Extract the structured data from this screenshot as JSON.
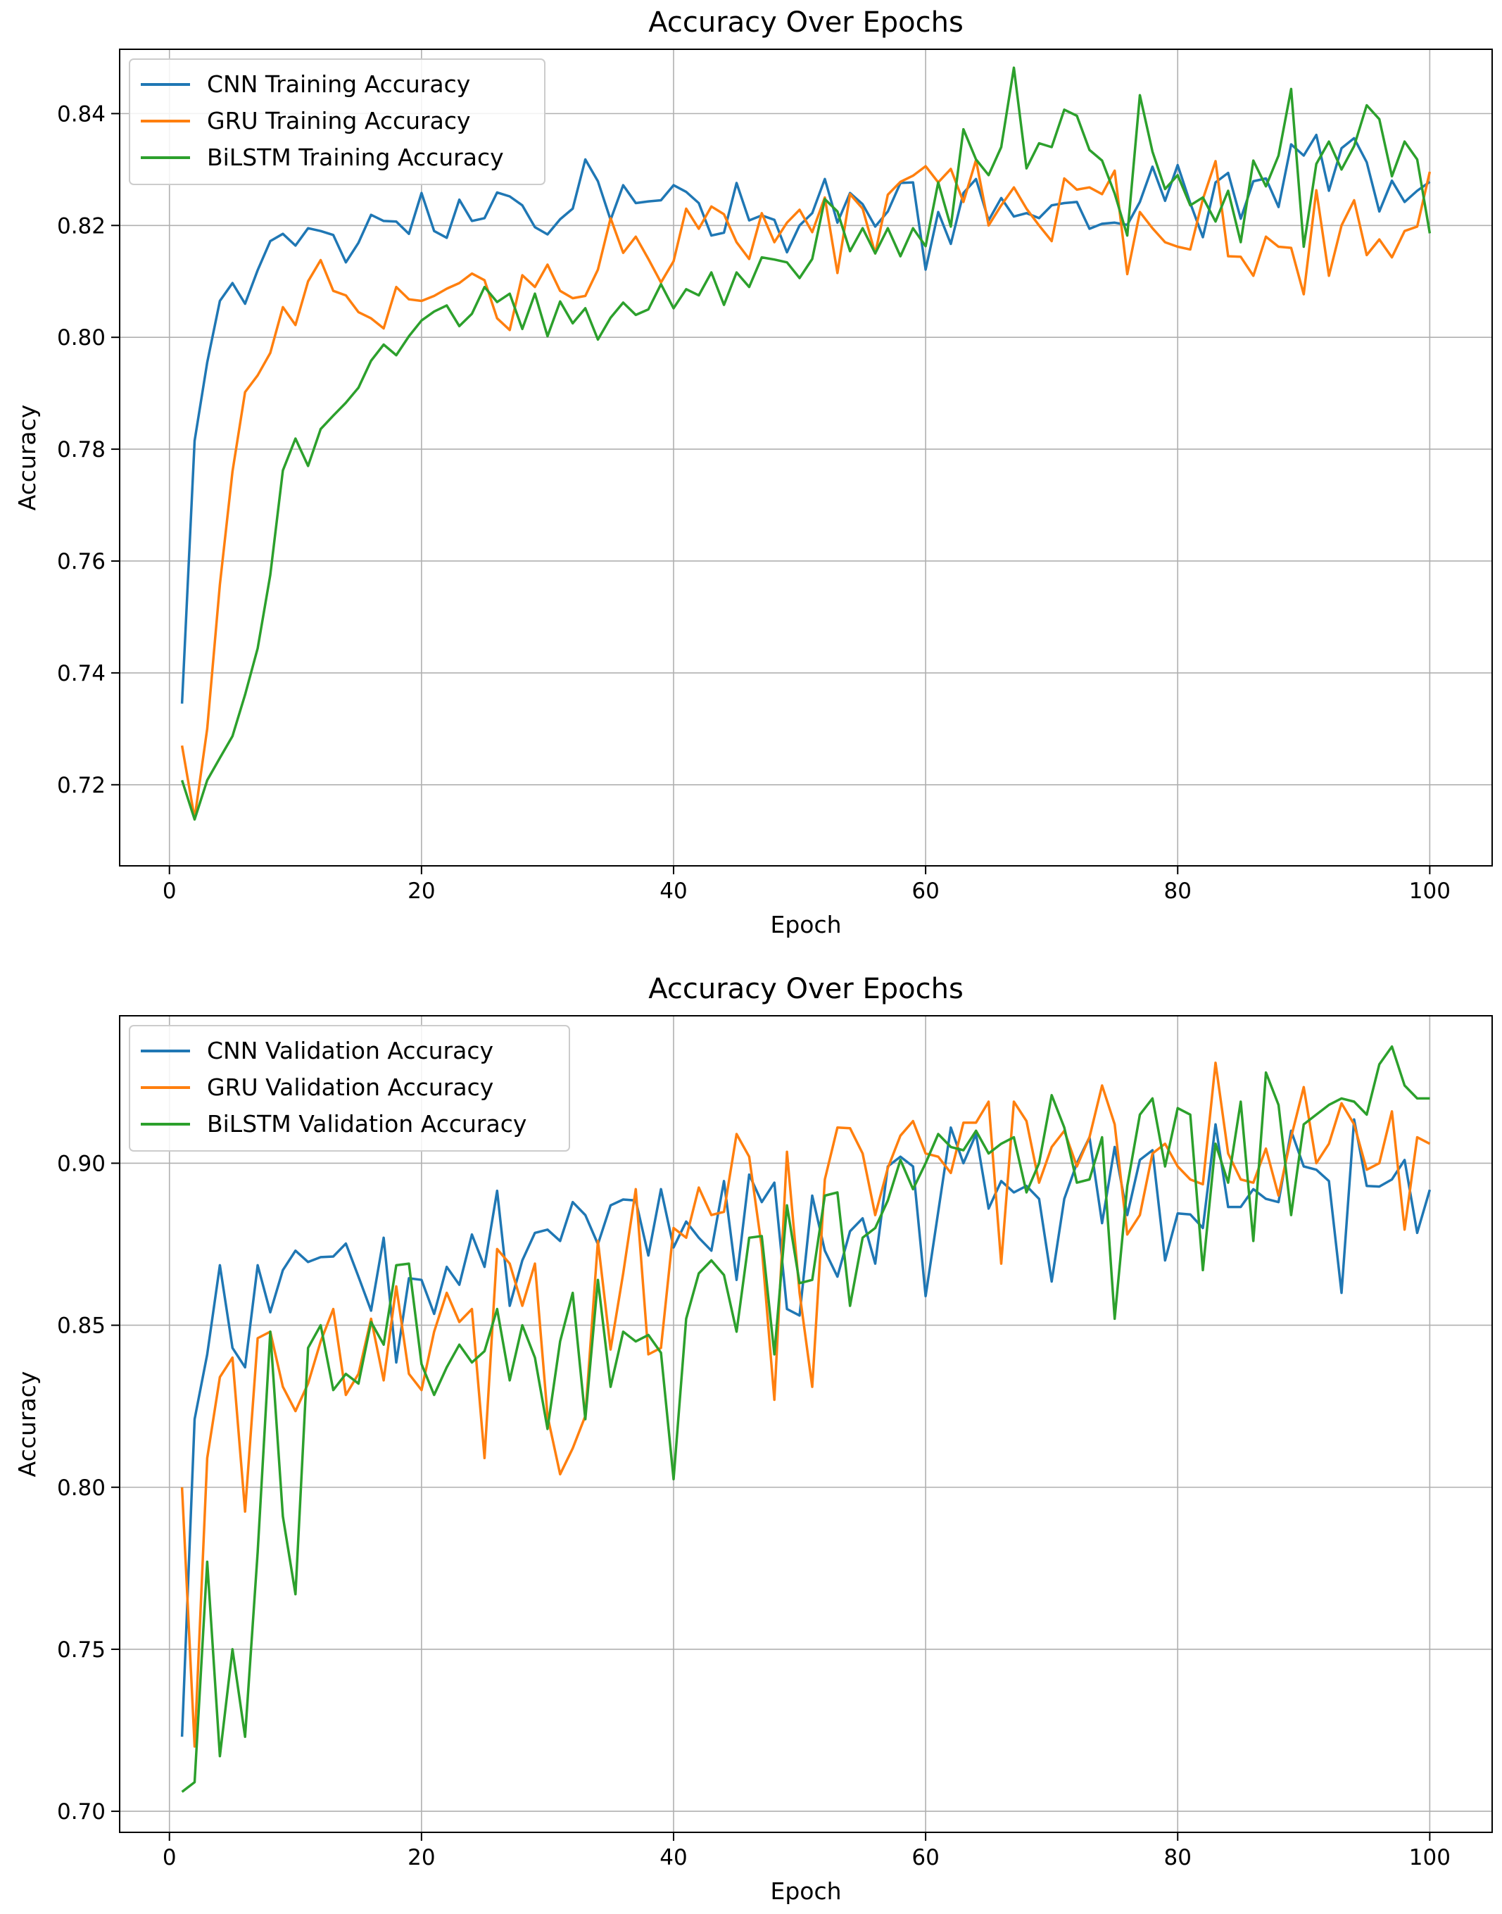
{
  "chart_data": [
    {
      "type": "line",
      "title": "Accuracy Over Epochs",
      "xlabel": "Epoch",
      "ylabel": "Accuracy",
      "xlim": [
        -3.95,
        104.95
      ],
      "ylim": [
        0.7055,
        0.8515
      ],
      "xticks": [
        0,
        20,
        40,
        60,
        80,
        100
      ],
      "xtick_labels": [
        "0",
        "20",
        "40",
        "60",
        "80",
        "100"
      ],
      "yticks": [
        0.72,
        0.74,
        0.76,
        0.78,
        0.8,
        0.82,
        0.84
      ],
      "ytick_labels": [
        "0.72",
        "0.74",
        "0.76",
        "0.78",
        "0.80",
        "0.82",
        "0.84"
      ],
      "grid": true,
      "legend_position": "top-left",
      "series": [
        {
          "name": "CNN Training Accuracy",
          "color": "#1f77b4",
          "values": [
            0.7345,
            0.7815,
            0.7955,
            0.8065,
            0.8097,
            0.806,
            0.812,
            0.8172,
            0.8185,
            0.8164,
            0.8195,
            0.819,
            0.8183,
            0.8134,
            0.8169,
            0.8219,
            0.8208,
            0.8207,
            0.8185,
            0.8258,
            0.819,
            0.8178,
            0.8246,
            0.8208,
            0.8213,
            0.8259,
            0.8252,
            0.8236,
            0.8197,
            0.8184,
            0.8211,
            0.823,
            0.8318,
            0.8279,
            0.821,
            0.8272,
            0.824,
            0.8243,
            0.8245,
            0.8272,
            0.826,
            0.824,
            0.8182,
            0.8187,
            0.8276,
            0.8209,
            0.8218,
            0.821,
            0.8152,
            0.82,
            0.8222,
            0.8283,
            0.8205,
            0.8258,
            0.8238,
            0.8198,
            0.8225,
            0.8276,
            0.8277,
            0.8121,
            0.8224,
            0.8167,
            0.8258,
            0.8283,
            0.8209,
            0.8249,
            0.8216,
            0.8222,
            0.8213,
            0.8236,
            0.824,
            0.8242,
            0.8194,
            0.8203,
            0.8205,
            0.8201,
            0.8242,
            0.8305,
            0.8244,
            0.8308,
            0.824,
            0.8179,
            0.8277,
            0.8294,
            0.8212,
            0.8279,
            0.8284,
            0.8233,
            0.8345,
            0.8325,
            0.8362,
            0.8262,
            0.8338,
            0.8356,
            0.8313,
            0.8225,
            0.828,
            0.8242,
            0.8262,
            0.8278
          ]
        },
        {
          "name": "GRU Training Accuracy",
          "color": "#ff7f0e",
          "values": [
            0.727,
            0.714,
            0.73,
            0.7558,
            0.776,
            0.7902,
            0.7932,
            0.7972,
            0.8054,
            0.8022,
            0.81,
            0.8138,
            0.8083,
            0.8075,
            0.8045,
            0.8034,
            0.8016,
            0.809,
            0.8068,
            0.8065,
            0.8074,
            0.8087,
            0.8097,
            0.8114,
            0.8102,
            0.8034,
            0.8013,
            0.8111,
            0.809,
            0.813,
            0.8083,
            0.807,
            0.8074,
            0.8121,
            0.8213,
            0.8151,
            0.818,
            0.814,
            0.8098,
            0.8136,
            0.823,
            0.8194,
            0.8234,
            0.822,
            0.817,
            0.814,
            0.8222,
            0.817,
            0.8205,
            0.8228,
            0.8188,
            0.825,
            0.8115,
            0.8256,
            0.823,
            0.815,
            0.8255,
            0.8278,
            0.8289,
            0.8306,
            0.8277,
            0.8301,
            0.8242,
            0.8317,
            0.82,
            0.8236,
            0.8268,
            0.823,
            0.82,
            0.8172,
            0.8284,
            0.8264,
            0.8268,
            0.8256,
            0.8298,
            0.8113,
            0.8224,
            0.8195,
            0.817,
            0.8162,
            0.8157,
            0.8247,
            0.8315,
            0.8145,
            0.8144,
            0.811,
            0.818,
            0.8162,
            0.816,
            0.8077,
            0.8263,
            0.811,
            0.82,
            0.8245,
            0.8147,
            0.8175,
            0.8143,
            0.819,
            0.8198,
            0.8296
          ]
        },
        {
          "name": "BiLSTM Training Accuracy",
          "color": "#2ca02c",
          "values": [
            0.7208,
            0.7138,
            0.7208,
            0.7248,
            0.7287,
            0.7361,
            0.7444,
            0.7575,
            0.7762,
            0.7819,
            0.777,
            0.7836,
            0.786,
            0.7883,
            0.791,
            0.7958,
            0.7987,
            0.7968,
            0.8002,
            0.803,
            0.8046,
            0.8057,
            0.802,
            0.8042,
            0.809,
            0.8063,
            0.8078,
            0.8015,
            0.8078,
            0.8002,
            0.8064,
            0.8025,
            0.8052,
            0.7996,
            0.8035,
            0.8062,
            0.804,
            0.805,
            0.8095,
            0.8052,
            0.8086,
            0.8075,
            0.8116,
            0.8058,
            0.8116,
            0.809,
            0.8143,
            0.8139,
            0.8134,
            0.8106,
            0.814,
            0.8247,
            0.8225,
            0.8154,
            0.8195,
            0.815,
            0.8195,
            0.8145,
            0.8195,
            0.8163,
            0.8277,
            0.8198,
            0.8372,
            0.8318,
            0.829,
            0.834,
            0.8482,
            0.8302,
            0.8347,
            0.834,
            0.8407,
            0.8396,
            0.8335,
            0.8316,
            0.8257,
            0.8182,
            0.8433,
            0.8332,
            0.8265,
            0.829,
            0.8236,
            0.825,
            0.8207,
            0.8262,
            0.817,
            0.8316,
            0.827,
            0.8325,
            0.8444,
            0.8162,
            0.831,
            0.835,
            0.83,
            0.8342,
            0.8415,
            0.839,
            0.8288,
            0.835,
            0.8318,
            0.8186
          ]
        }
      ]
    },
    {
      "type": "line",
      "title": "Accuracy Over Epochs",
      "xlabel": "Epoch",
      "ylabel": "Accuracy",
      "xlim": [
        -3.95,
        104.95
      ],
      "ylim": [
        0.6935,
        0.9455
      ],
      "xticks": [
        0,
        20,
        40,
        60,
        80,
        100
      ],
      "xtick_labels": [
        "0",
        "20",
        "40",
        "60",
        "80",
        "100"
      ],
      "yticks": [
        0.7,
        0.75,
        0.8,
        0.85,
        0.9
      ],
      "ytick_labels": [
        "0.70",
        "0.75",
        "0.80",
        "0.85",
        "0.90"
      ],
      "grid": true,
      "legend_position": "top-left",
      "series": [
        {
          "name": "CNN Validation Accuracy",
          "color": "#1f77b4",
          "values": [
            0.723,
            0.821,
            0.841,
            0.8685,
            0.843,
            0.837,
            0.8685,
            0.854,
            0.867,
            0.873,
            0.8695,
            0.871,
            0.8712,
            0.8752,
            0.865,
            0.8545,
            0.877,
            0.8385,
            0.8645,
            0.864,
            0.8535,
            0.868,
            0.8625,
            0.878,
            0.868,
            0.8915,
            0.856,
            0.87,
            0.8785,
            0.8795,
            0.876,
            0.888,
            0.884,
            0.875,
            0.887,
            0.8888,
            0.8885,
            0.8715,
            0.892,
            0.874,
            0.882,
            0.877,
            0.873,
            0.8945,
            0.864,
            0.8965,
            0.888,
            0.894,
            0.855,
            0.853,
            0.89,
            0.873,
            0.865,
            0.879,
            0.883,
            0.869,
            0.899,
            0.902,
            0.899,
            0.859,
            0.885,
            0.911,
            0.9,
            0.909,
            0.886,
            0.8945,
            0.891,
            0.893,
            0.889,
            0.8635,
            0.889,
            0.9,
            0.908,
            0.8815,
            0.905,
            0.884,
            0.901,
            0.904,
            0.87,
            0.8845,
            0.8842,
            0.88,
            0.912,
            0.8865,
            0.8865,
            0.892,
            0.889,
            0.888,
            0.91,
            0.899,
            0.898,
            0.8945,
            0.86,
            0.9135,
            0.893,
            0.8928,
            0.895,
            0.901,
            0.8785,
            0.8918
          ]
        },
        {
          "name": "GRU Validation Accuracy",
          "color": "#ff7f0e",
          "values": [
            0.8,
            0.72,
            0.809,
            0.834,
            0.84,
            0.7925,
            0.846,
            0.848,
            0.831,
            0.8235,
            0.832,
            0.845,
            0.855,
            0.8285,
            0.835,
            0.852,
            0.833,
            0.862,
            0.835,
            0.83,
            0.848,
            0.86,
            0.851,
            0.855,
            0.809,
            0.8735,
            0.869,
            0.856,
            0.869,
            0.822,
            0.804,
            0.812,
            0.822,
            0.876,
            0.8425,
            0.866,
            0.892,
            0.841,
            0.843,
            0.88,
            0.877,
            0.8925,
            0.884,
            0.885,
            0.909,
            0.902,
            0.874,
            0.827,
            0.9035,
            0.86,
            0.831,
            0.895,
            0.911,
            0.9108,
            0.903,
            0.884,
            0.8985,
            0.9085,
            0.913,
            0.903,
            0.902,
            0.897,
            0.9125,
            0.9125,
            0.919,
            0.869,
            0.919,
            0.913,
            0.894,
            0.905,
            0.91,
            0.899,
            0.908,
            0.924,
            0.912,
            0.878,
            0.884,
            0.903,
            0.906,
            0.899,
            0.895,
            0.8935,
            0.931,
            0.903,
            0.895,
            0.894,
            0.9045,
            0.89,
            0.908,
            0.9235,
            0.9,
            0.906,
            0.9185,
            0.912,
            0.898,
            0.9,
            0.916,
            0.8795,
            0.908,
            0.906
          ]
        },
        {
          "name": "BiLSTM Validation Accuracy",
          "color": "#2ca02c",
          "values": [
            0.706,
            0.709,
            0.777,
            0.717,
            0.75,
            0.723,
            0.78,
            0.848,
            0.791,
            0.767,
            0.843,
            0.85,
            0.83,
            0.835,
            0.832,
            0.851,
            0.844,
            0.8685,
            0.869,
            0.838,
            0.8285,
            0.837,
            0.844,
            0.8385,
            0.842,
            0.855,
            0.833,
            0.85,
            0.84,
            0.818,
            0.845,
            0.86,
            0.821,
            0.864,
            0.831,
            0.848,
            0.845,
            0.847,
            0.8415,
            0.8025,
            0.852,
            0.866,
            0.87,
            0.8655,
            0.848,
            0.877,
            0.8775,
            0.841,
            0.887,
            0.863,
            0.864,
            0.89,
            0.891,
            0.856,
            0.877,
            0.88,
            0.8885,
            0.901,
            0.892,
            0.9,
            0.909,
            0.905,
            0.904,
            0.91,
            0.903,
            0.906,
            0.908,
            0.891,
            0.9,
            0.921,
            0.911,
            0.894,
            0.895,
            0.908,
            0.852,
            0.893,
            0.915,
            0.92,
            0.899,
            0.917,
            0.915,
            0.867,
            0.906,
            0.894,
            0.919,
            0.876,
            0.928,
            0.918,
            0.884,
            0.912,
            0.915,
            0.918,
            0.92,
            0.919,
            0.915,
            0.9305,
            0.936,
            0.924,
            0.92,
            0.92
          ]
        }
      ]
    }
  ]
}
